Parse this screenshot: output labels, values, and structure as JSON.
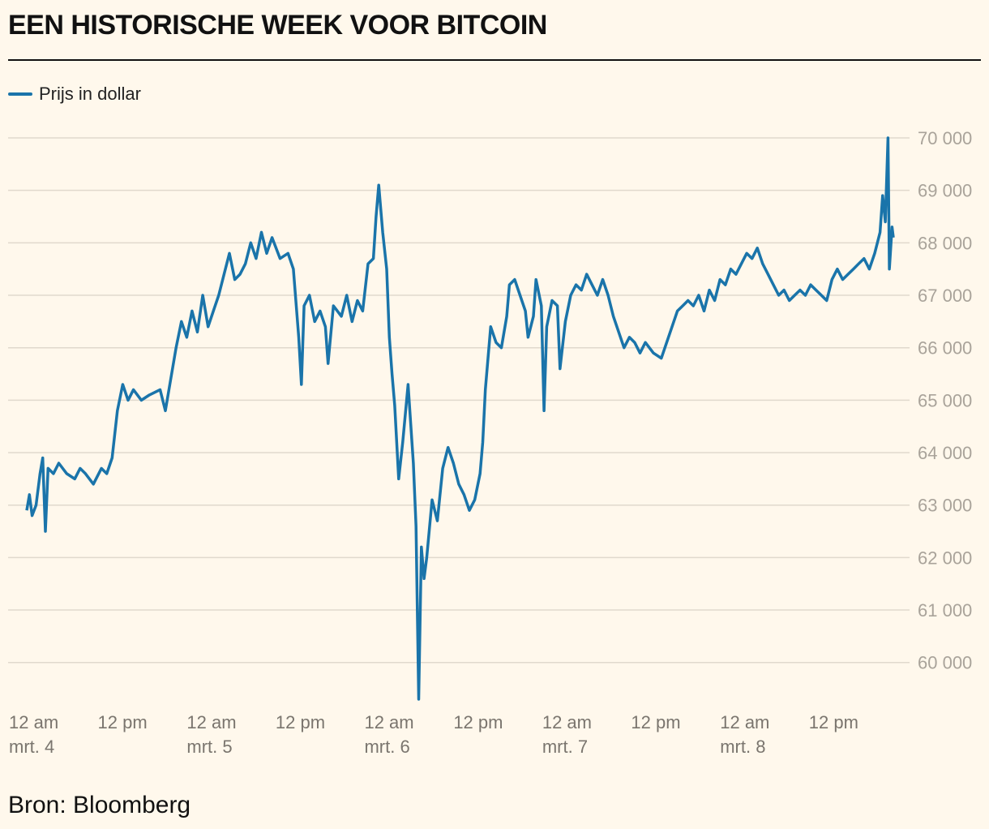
{
  "chart_data": {
    "type": "line",
    "title": "EEN HISTORISCHE WEEK VOOR BITCOIN",
    "source": "Bron: Bloomberg",
    "series": [
      {
        "name": "Prijs in dollar",
        "color": "#1a74aa",
        "points": [
          [
            0,
            62900
          ],
          [
            0.1,
            63200
          ],
          [
            0.2,
            62800
          ],
          [
            0.35,
            63000
          ],
          [
            0.5,
            63600
          ],
          [
            0.6,
            63900
          ],
          [
            0.7,
            62500
          ],
          [
            0.8,
            63700
          ],
          [
            1.0,
            63600
          ],
          [
            1.2,
            63800
          ],
          [
            1.5,
            63600
          ],
          [
            1.8,
            63500
          ],
          [
            2.0,
            63700
          ],
          [
            2.2,
            63600
          ],
          [
            2.5,
            63400
          ],
          [
            2.8,
            63700
          ],
          [
            3.0,
            63600
          ],
          [
            3.2,
            63900
          ],
          [
            3.4,
            64800
          ],
          [
            3.6,
            65300
          ],
          [
            3.8,
            65000
          ],
          [
            4.0,
            65200
          ],
          [
            4.3,
            65000
          ],
          [
            4.6,
            65100
          ],
          [
            5.0,
            65200
          ],
          [
            5.2,
            64800
          ],
          [
            5.4,
            65400
          ],
          [
            5.6,
            66000
          ],
          [
            5.8,
            66500
          ],
          [
            6.0,
            66200
          ],
          [
            6.2,
            66700
          ],
          [
            6.4,
            66300
          ],
          [
            6.6,
            67000
          ],
          [
            6.8,
            66400
          ],
          [
            7.0,
            66700
          ],
          [
            7.2,
            67000
          ],
          [
            7.4,
            67400
          ],
          [
            7.6,
            67800
          ],
          [
            7.8,
            67300
          ],
          [
            8.0,
            67400
          ],
          [
            8.2,
            67600
          ],
          [
            8.4,
            68000
          ],
          [
            8.6,
            67700
          ],
          [
            8.8,
            68200
          ],
          [
            9.0,
            67800
          ],
          [
            9.2,
            68100
          ],
          [
            9.5,
            67700
          ],
          [
            9.8,
            67800
          ],
          [
            10.0,
            67500
          ],
          [
            10.2,
            66200
          ],
          [
            10.3,
            65300
          ],
          [
            10.4,
            66800
          ],
          [
            10.6,
            67000
          ],
          [
            10.8,
            66500
          ],
          [
            11.0,
            66700
          ],
          [
            11.2,
            66400
          ],
          [
            11.3,
            65700
          ],
          [
            11.5,
            66800
          ],
          [
            11.8,
            66600
          ],
          [
            12.0,
            67000
          ],
          [
            12.2,
            66500
          ],
          [
            12.4,
            66900
          ],
          [
            12.6,
            66700
          ],
          [
            12.8,
            67600
          ],
          [
            13.0,
            67700
          ],
          [
            13.1,
            68500
          ],
          [
            13.2,
            69100
          ],
          [
            13.35,
            68200
          ],
          [
            13.5,
            67500
          ],
          [
            13.6,
            66200
          ],
          [
            13.7,
            65500
          ],
          [
            13.8,
            64900
          ],
          [
            13.95,
            63500
          ],
          [
            14.1,
            64200
          ],
          [
            14.3,
            65300
          ],
          [
            14.5,
            63800
          ],
          [
            14.6,
            62600
          ],
          [
            14.7,
            59300
          ],
          [
            14.8,
            62200
          ],
          [
            14.9,
            61600
          ],
          [
            15.0,
            62000
          ],
          [
            15.2,
            63100
          ],
          [
            15.4,
            62700
          ],
          [
            15.6,
            63700
          ],
          [
            15.8,
            64100
          ],
          [
            16.0,
            63800
          ],
          [
            16.2,
            63400
          ],
          [
            16.4,
            63200
          ],
          [
            16.6,
            62900
          ],
          [
            16.8,
            63100
          ],
          [
            17.0,
            63600
          ],
          [
            17.1,
            64200
          ],
          [
            17.2,
            65200
          ],
          [
            17.4,
            66400
          ],
          [
            17.6,
            66100
          ],
          [
            17.8,
            66000
          ],
          [
            18.0,
            66600
          ],
          [
            18.1,
            67200
          ],
          [
            18.3,
            67300
          ],
          [
            18.5,
            67000
          ],
          [
            18.7,
            66700
          ],
          [
            18.8,
            66200
          ],
          [
            19.0,
            66600
          ],
          [
            19.1,
            67300
          ],
          [
            19.3,
            66800
          ],
          [
            19.4,
            64800
          ],
          [
            19.5,
            66400
          ],
          [
            19.7,
            66900
          ],
          [
            19.9,
            66800
          ],
          [
            20.0,
            65600
          ],
          [
            20.2,
            66500
          ],
          [
            20.4,
            67000
          ],
          [
            20.6,
            67200
          ],
          [
            20.8,
            67100
          ],
          [
            21.0,
            67400
          ],
          [
            21.2,
            67200
          ],
          [
            21.4,
            67000
          ],
          [
            21.6,
            67300
          ],
          [
            21.8,
            67000
          ],
          [
            22.0,
            66600
          ],
          [
            22.2,
            66300
          ],
          [
            22.4,
            66000
          ],
          [
            22.6,
            66200
          ],
          [
            22.8,
            66100
          ],
          [
            23.0,
            65900
          ],
          [
            23.2,
            66100
          ],
          [
            23.5,
            65900
          ],
          [
            23.8,
            65800
          ],
          [
            24.0,
            66100
          ],
          [
            24.2,
            66400
          ],
          [
            24.4,
            66700
          ],
          [
            24.6,
            66800
          ],
          [
            24.8,
            66900
          ],
          [
            25.0,
            66800
          ],
          [
            25.2,
            67000
          ],
          [
            25.4,
            66700
          ],
          [
            25.6,
            67100
          ],
          [
            25.8,
            66900
          ],
          [
            26.0,
            67300
          ],
          [
            26.2,
            67200
          ],
          [
            26.4,
            67500
          ],
          [
            26.6,
            67400
          ],
          [
            26.8,
            67600
          ],
          [
            27.0,
            67800
          ],
          [
            27.2,
            67700
          ],
          [
            27.4,
            67900
          ],
          [
            27.6,
            67600
          ],
          [
            27.8,
            67400
          ],
          [
            28.0,
            67200
          ],
          [
            28.2,
            67000
          ],
          [
            28.4,
            67100
          ],
          [
            28.6,
            66900
          ],
          [
            28.8,
            67000
          ],
          [
            29.0,
            67100
          ],
          [
            29.2,
            67000
          ],
          [
            29.4,
            67200
          ],
          [
            29.6,
            67100
          ],
          [
            29.8,
            67000
          ],
          [
            30.0,
            66900
          ],
          [
            30.2,
            67300
          ],
          [
            30.4,
            67500
          ],
          [
            30.6,
            67300
          ],
          [
            30.8,
            67400
          ],
          [
            31.0,
            67500
          ],
          [
            31.2,
            67600
          ],
          [
            31.4,
            67700
          ],
          [
            31.6,
            67500
          ],
          [
            31.8,
            67800
          ],
          [
            32.0,
            68200
          ],
          [
            32.1,
            68900
          ],
          [
            32.2,
            68400
          ],
          [
            32.3,
            70000
          ],
          [
            32.35,
            67500
          ],
          [
            32.45,
            68300
          ],
          [
            32.5,
            68100
          ]
        ]
      }
    ],
    "x_ticks": [
      {
        "at": 0,
        "line1": "12 am",
        "line2": "mrt. 4"
      },
      {
        "at": 3.33,
        "line1": "12 pm",
        "line2": ""
      },
      {
        "at": 6.67,
        "line1": "12 am",
        "line2": "mrt. 5"
      },
      {
        "at": 10.0,
        "line1": "12 pm",
        "line2": ""
      },
      {
        "at": 13.33,
        "line1": "12 am",
        "line2": "mrt. 6"
      },
      {
        "at": 16.67,
        "line1": "12 pm",
        "line2": ""
      },
      {
        "at": 20.0,
        "line1": "12 am",
        "line2": "mrt. 7"
      },
      {
        "at": 23.33,
        "line1": "12 pm",
        "line2": ""
      },
      {
        "at": 26.67,
        "line1": "12 am",
        "line2": "mrt. 8"
      },
      {
        "at": 30.0,
        "line1": "12 pm",
        "line2": ""
      }
    ],
    "y_ticks": [
      {
        "value": 70000,
        "label": "70 000"
      },
      {
        "value": 69000,
        "label": "69 000"
      },
      {
        "value": 68000,
        "label": "68 000"
      },
      {
        "value": 67000,
        "label": "67 000"
      },
      {
        "value": 66000,
        "label": "66 000"
      },
      {
        "value": 65000,
        "label": "65 000"
      },
      {
        "value": 64000,
        "label": "64 000"
      },
      {
        "value": 63000,
        "label": "63 000"
      },
      {
        "value": 62000,
        "label": "62 000"
      },
      {
        "value": 61000,
        "label": "61 000"
      },
      {
        "value": 60000,
        "label": "60 000"
      }
    ],
    "ylim": [
      59300,
      70000
    ],
    "xlim": [
      0,
      32.5
    ],
    "y_axis_position": "right",
    "grid": true,
    "legend_position": "top-left"
  }
}
